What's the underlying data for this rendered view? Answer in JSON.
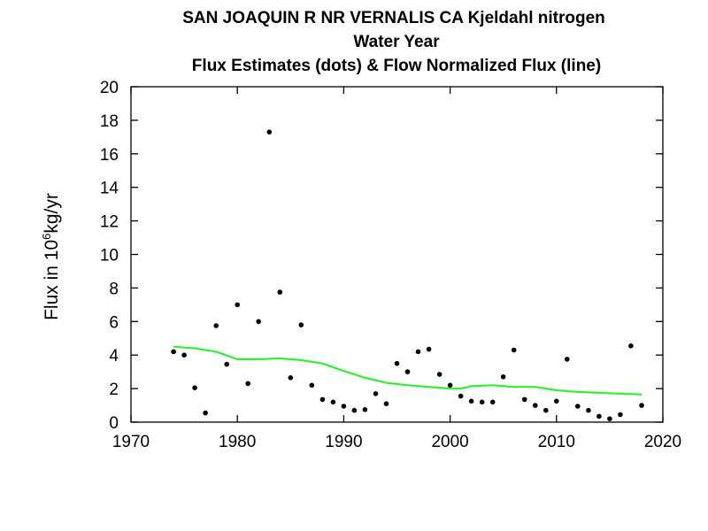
{
  "chart_data": {
    "type": "scatter",
    "title_lines": [
      "SAN JOAQUIN R NR VERNALIS CA   Kjeldahl nitrogen",
      "Water Year",
      "Flux Estimates (dots) & Flow Normalized Flux (line)"
    ],
    "ylabel": {
      "prefix": "Flux in 10",
      "exponent": "6",
      "suffix": "kg/yr"
    },
    "xlabel": "",
    "xlim": [
      1970,
      2020
    ],
    "ylim": [
      0,
      20
    ],
    "x_ticks": [
      1970,
      1980,
      1990,
      2000,
      2010,
      2020
    ],
    "y_ticks": [
      0,
      2,
      4,
      6,
      8,
      10,
      12,
      14,
      16,
      18,
      20
    ],
    "grid": false,
    "series": [
      {
        "kind": "points",
        "color": "#000000",
        "x": [
          1974,
          1975,
          1976,
          1977,
          1978,
          1979,
          1980,
          1981,
          1982,
          1983,
          1984,
          1985,
          1986,
          1987,
          1988,
          1989,
          1990,
          1991,
          1992,
          1993,
          1994,
          1995,
          1996,
          1997,
          1998,
          1999,
          2000,
          2001,
          2002,
          2003,
          2004,
          2005,
          2006,
          2007,
          2008,
          2009,
          2010,
          2011,
          2012,
          2013,
          2014,
          2015,
          2016,
          2017,
          2018
        ],
        "y": [
          4.2,
          4.0,
          2.05,
          0.55,
          5.75,
          3.45,
          7.0,
          2.3,
          6.0,
          17.3,
          7.75,
          2.65,
          5.8,
          2.2,
          1.35,
          1.2,
          0.95,
          0.7,
          0.75,
          1.7,
          1.1,
          3.5,
          3.0,
          4.2,
          4.35,
          2.85,
          2.2,
          1.55,
          1.25,
          1.2,
          1.2,
          2.7,
          4.3,
          1.35,
          1.0,
          0.7,
          1.25,
          3.75,
          0.95,
          0.7,
          0.35,
          0.2,
          0.45,
          4.55,
          1.0
        ]
      },
      {
        "kind": "line",
        "color": "#33ee33",
        "x": [
          1974,
          1976,
          1978,
          1980,
          1982,
          1984,
          1986,
          1988,
          1990,
          1992,
          1994,
          1996,
          1998,
          2000,
          2001,
          2002,
          2004,
          2006,
          2008,
          2010,
          2012,
          2014,
          2016,
          2018
        ],
        "y": [
          4.5,
          4.4,
          4.2,
          3.75,
          3.75,
          3.8,
          3.7,
          3.5,
          3.05,
          2.65,
          2.35,
          2.2,
          2.1,
          2.0,
          2.0,
          2.15,
          2.2,
          2.1,
          2.1,
          1.9,
          1.8,
          1.75,
          1.7,
          1.65
        ]
      }
    ]
  }
}
